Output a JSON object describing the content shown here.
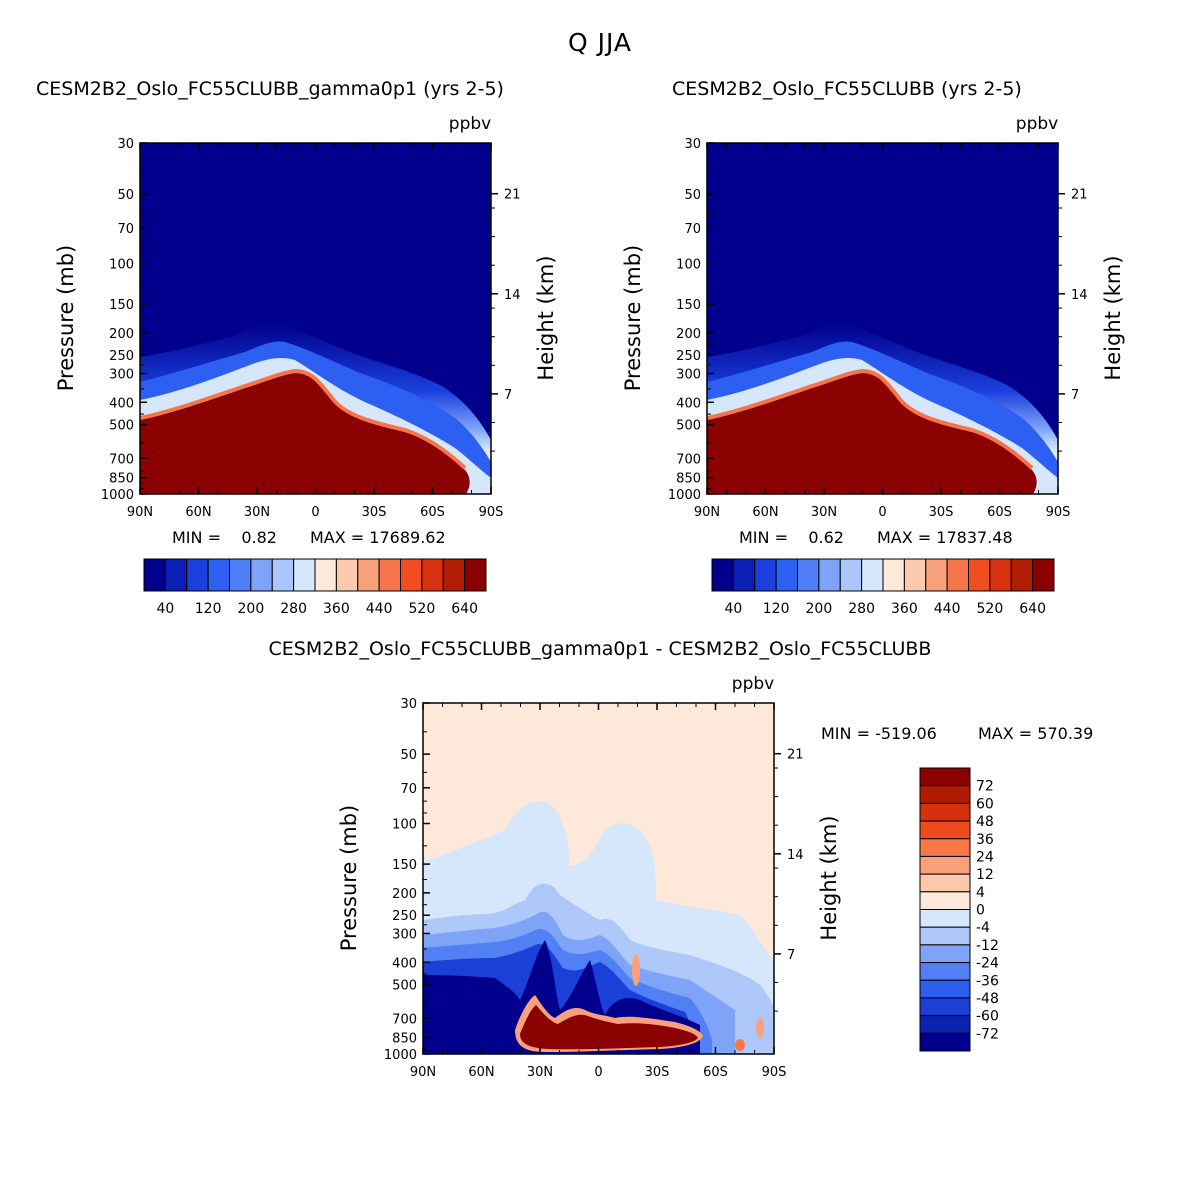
{
  "title": "Q JJA",
  "chart_data": [
    {
      "type": "heatmap",
      "title": "CESM2B2_Oslo_FC55CLUBB_gamma0p1 (yrs 2-5)",
      "units": "ppbv",
      "ylabel": "Pressure (mb)",
      "ylabel_right": "Height (km)",
      "x_ticks": [
        "90N",
        "60N",
        "30N",
        "0",
        "30S",
        "60S",
        "90S"
      ],
      "y_ticks": [
        "30",
        "50",
        "70",
        "100",
        "150",
        "200",
        "250",
        "300",
        "400",
        "500",
        "700",
        "850",
        "1000"
      ],
      "y_ticks_right": [
        "21",
        "14",
        "7"
      ],
      "min_label": "MIN =    0.82",
      "max_label": "MAX = 17689.62",
      "colorbar_labels": [
        "40",
        "120",
        "200",
        "280",
        "360",
        "440",
        "520",
        "640"
      ],
      "colors": [
        "#00008c",
        "#0b1fb4",
        "#1b40dd",
        "#2c5ff2",
        "#4f7ef7",
        "#7ea3f8",
        "#aac6fa",
        "#d6e7fb",
        "#fde8da",
        "#fbc9ae",
        "#f8a07c",
        "#f67449",
        "#f14c22",
        "#d93210",
        "#b21d06",
        "#8b0000"
      ]
    },
    {
      "type": "heatmap",
      "title": "CESM2B2_Oslo_FC55CLUBB (yrs 2-5)",
      "units": "ppbv",
      "ylabel": "Pressure (mb)",
      "ylabel_right": "Height (km)",
      "x_ticks": [
        "90N",
        "60N",
        "30N",
        "0",
        "30S",
        "60S",
        "90S"
      ],
      "y_ticks": [
        "30",
        "50",
        "70",
        "100",
        "150",
        "200",
        "250",
        "300",
        "400",
        "500",
        "700",
        "850",
        "1000"
      ],
      "y_ticks_right": [
        "21",
        "14",
        "7"
      ],
      "min_label": "MIN =    0.62",
      "max_label": "MAX = 17837.48",
      "colorbar_labels": [
        "40",
        "120",
        "200",
        "280",
        "360",
        "440",
        "520",
        "640"
      ]
    },
    {
      "type": "heatmap",
      "title": "CESM2B2_Oslo_FC55CLUBB_gamma0p1 - CESM2B2_Oslo_FC55CLUBB",
      "units": "ppbv",
      "ylabel": "Pressure (mb)",
      "ylabel_right": "Height (km)",
      "x_ticks": [
        "90N",
        "60N",
        "30N",
        "0",
        "30S",
        "60S",
        "90S"
      ],
      "y_ticks": [
        "30",
        "50",
        "70",
        "100",
        "150",
        "200",
        "250",
        "300",
        "400",
        "500",
        "700",
        "850",
        "1000"
      ],
      "y_ticks_right": [
        "21",
        "14",
        "7"
      ],
      "min_label": "MIN = -519.06",
      "max_label": "MAX = 570.39",
      "colorbar_labels": [
        "72",
        "60",
        "48",
        "36",
        "24",
        "12",
        "4",
        "0",
        "-4",
        "-12",
        "-24",
        "-36",
        "-48",
        "-60",
        "-72"
      ],
      "colors": [
        "#8b0000",
        "#b31a04",
        "#d8300c",
        "#f04b1d",
        "#f97744",
        "#fba07b",
        "#fcc7ab",
        "#fde8da",
        "#d6e7fb",
        "#adc8f9",
        "#7fa3f7",
        "#5080f4",
        "#2c5ff0",
        "#1b40d8",
        "#0b22b2",
        "#00008c"
      ]
    }
  ]
}
